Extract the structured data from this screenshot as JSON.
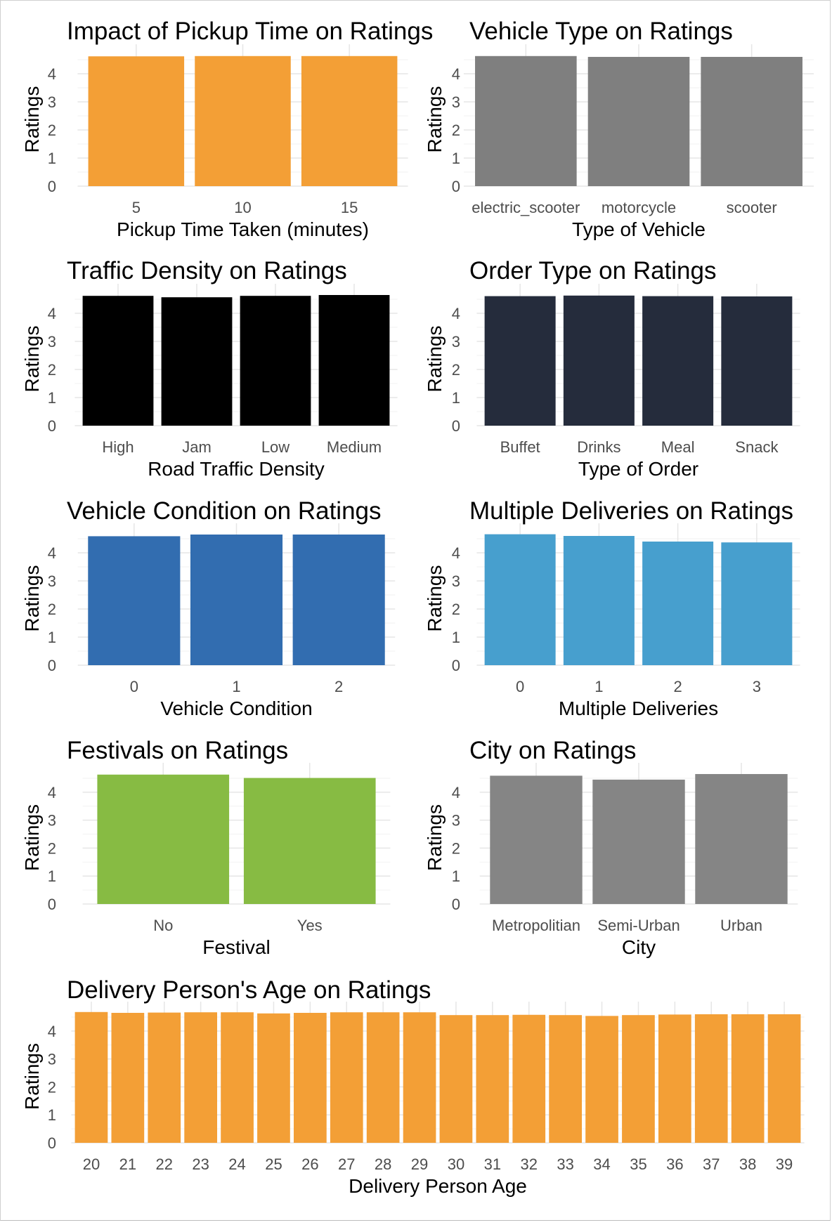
{
  "chart_data": [
    {
      "type": "bar",
      "title": "Impact of Pickup Time on Ratings",
      "xlabel": "Pickup Time Taken (minutes)",
      "ylabel": "Ratings",
      "categories": [
        "5",
        "10",
        "15"
      ],
      "values": [
        4.62,
        4.63,
        4.63
      ],
      "ylim": [
        0,
        4.75
      ],
      "yticks": [
        "0",
        "1",
        "2",
        "3",
        "4"
      ],
      "color": "#F39F36",
      "grid": true
    },
    {
      "type": "bar",
      "title": "Vehicle Type on Ratings",
      "xlabel": "Type of Vehicle",
      "ylabel": "Ratings",
      "categories": [
        "electric_scooter",
        "motorcycle",
        "scooter"
      ],
      "values": [
        4.63,
        4.6,
        4.6
      ],
      "ylim": [
        0,
        4.75
      ],
      "yticks": [
        "0",
        "1",
        "2",
        "3",
        "4"
      ],
      "color": "#7F7F7F",
      "grid": true
    },
    {
      "type": "bar",
      "title": "Traffic Density on Ratings",
      "xlabel": "Road Traffic Density",
      "ylabel": "Ratings",
      "categories": [
        "High",
        "Jam",
        "Low",
        "Medium"
      ],
      "values": [
        4.62,
        4.57,
        4.62,
        4.65
      ],
      "ylim": [
        0,
        4.75
      ],
      "yticks": [
        "0",
        "1",
        "2",
        "3",
        "4"
      ],
      "color": "#000000",
      "grid": true
    },
    {
      "type": "bar",
      "title": "Order Type on Ratings",
      "xlabel": "Type of Order",
      "ylabel": "Ratings",
      "categories": [
        "Buffet",
        "Drinks",
        "Meal",
        "Snack"
      ],
      "values": [
        4.61,
        4.63,
        4.61,
        4.6
      ],
      "ylim": [
        0,
        4.75
      ],
      "yticks": [
        "0",
        "1",
        "2",
        "3",
        "4"
      ],
      "color": "#252C3C",
      "grid": true
    },
    {
      "type": "bar",
      "title": "Vehicle Condition on Ratings",
      "xlabel": "Vehicle Condition",
      "ylabel": "Ratings",
      "categories": [
        "0",
        "1",
        "2"
      ],
      "values": [
        4.59,
        4.65,
        4.65
      ],
      "ylim": [
        0,
        4.75
      ],
      "yticks": [
        "0",
        "1",
        "2",
        "3",
        "4"
      ],
      "color": "#326DB0",
      "grid": true
    },
    {
      "type": "bar",
      "title": "Multiple Deliveries on Ratings",
      "xlabel": "Multiple Deliveries",
      "ylabel": "Ratings",
      "categories": [
        "0",
        "1",
        "2",
        "3"
      ],
      "values": [
        4.66,
        4.6,
        4.4,
        4.37
      ],
      "ylim": [
        0,
        4.75
      ],
      "yticks": [
        "0",
        "1",
        "2",
        "3",
        "4"
      ],
      "color": "#479FCE",
      "grid": true
    },
    {
      "type": "bar",
      "title": "Festivals on Ratings",
      "xlabel": "Festival",
      "ylabel": "Ratings",
      "categories": [
        "No",
        "Yes"
      ],
      "values": [
        4.63,
        4.51
      ],
      "ylim": [
        0,
        4.75
      ],
      "yticks": [
        "0",
        "1",
        "2",
        "3",
        "4"
      ],
      "color": "#87BB43",
      "grid": true
    },
    {
      "type": "bar",
      "title": "City on Ratings",
      "xlabel": "City",
      "ylabel": "Ratings",
      "categories": [
        "Metropolitian",
        "Semi-Urban",
        "Urban"
      ],
      "values": [
        4.59,
        4.45,
        4.65
      ],
      "ylim": [
        0,
        4.75
      ],
      "yticks": [
        "0",
        "1",
        "2",
        "3",
        "4"
      ],
      "color": "#858585",
      "grid": true
    },
    {
      "type": "bar",
      "title": "Delivery Person's Age on Ratings",
      "xlabel": "Delivery Person Age",
      "ylabel": "Ratings",
      "categories": [
        "20",
        "21",
        "22",
        "23",
        "24",
        "25",
        "26",
        "27",
        "28",
        "29",
        "30",
        "31",
        "32",
        "33",
        "34",
        "35",
        "36",
        "37",
        "38",
        "39"
      ],
      "values": [
        4.68,
        4.65,
        4.66,
        4.67,
        4.67,
        4.63,
        4.65,
        4.67,
        4.67,
        4.67,
        4.57,
        4.57,
        4.58,
        4.57,
        4.54,
        4.57,
        4.59,
        4.6,
        4.6,
        4.6
      ],
      "ylim": [
        0,
        4.75
      ],
      "yticks": [
        "0",
        "1",
        "2",
        "3",
        "4"
      ],
      "color": "#F39F36",
      "grid": true
    }
  ]
}
